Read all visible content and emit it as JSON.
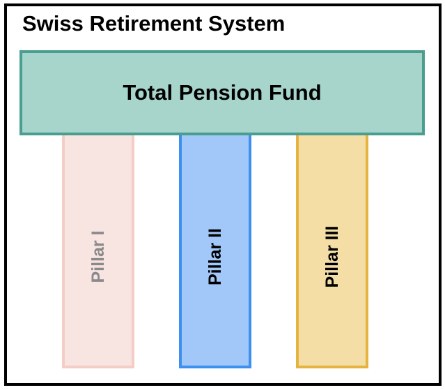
{
  "diagram": {
    "title": "Swiss Retirement System",
    "roof": {
      "label": "Total Pension Fund",
      "fill": "#a7d5cc",
      "border": "#4a9e8f",
      "text_color": "#000000"
    },
    "pillars": [
      {
        "label": "Pillar I",
        "fill": "#f8e4e1",
        "border": "#f3cdc6",
        "text_color": "#8a8a8a"
      },
      {
        "label": "Pillar II",
        "fill": "#a2c8fa",
        "border": "#3d8ff0",
        "text_color": "#000000"
      },
      {
        "label": "Pillar III",
        "fill": "#f4dea6",
        "border": "#e5b43e",
        "text_color": "#000000"
      }
    ]
  }
}
